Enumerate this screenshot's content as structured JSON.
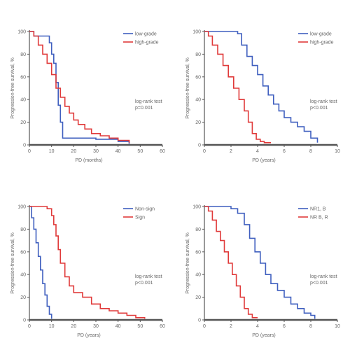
{
  "colors": {
    "series_a": "#3f5fbf",
    "series_b": "#e03a3a",
    "axis": "#555555",
    "text": "#666666"
  },
  "chart_data": [
    {
      "type": "line",
      "xlabel": "PD (months)",
      "ylabel": "Progression-free survival, %",
      "xlim": [
        0,
        60
      ],
      "ylim": [
        0,
        100
      ],
      "xticks": [
        0,
        10,
        20,
        30,
        40,
        50,
        60
      ],
      "yticks": [
        0,
        20,
        40,
        60,
        80,
        100
      ],
      "annotation": [
        "log-rank test",
        "p=0.001"
      ],
      "legend": "top-right",
      "series": [
        {
          "name": "low-grade",
          "x": [
            0,
            2,
            4,
            8,
            9,
            10,
            11,
            12,
            13,
            14,
            15,
            30,
            40,
            45
          ],
          "y": [
            100,
            96,
            96,
            96,
            90,
            80,
            72,
            55,
            35,
            20,
            6,
            5,
            3,
            1
          ]
        },
        {
          "name": "high-grade",
          "x": [
            0,
            2,
            4,
            6,
            8,
            10,
            12,
            14,
            16,
            18,
            20,
            22,
            25,
            28,
            32,
            36,
            40,
            45
          ],
          "y": [
            100,
            96,
            88,
            80,
            72,
            62,
            50,
            42,
            34,
            28,
            22,
            18,
            14,
            10,
            8,
            6,
            4,
            2
          ]
        }
      ]
    },
    {
      "type": "line",
      "xlabel": "PD (years)",
      "ylabel": "Progression-free survival, %",
      "xlim": [
        0,
        10
      ],
      "ylim": [
        0,
        100
      ],
      "xticks": [
        0,
        2,
        4,
        6,
        8,
        10
      ],
      "yticks": [
        0,
        20,
        40,
        60,
        80,
        100
      ],
      "annotation": [
        "log-rank test",
        "p<0.001"
      ],
      "legend": "top-right",
      "series": [
        {
          "name": "low-grade",
          "x": [
            0,
            1,
            2,
            2.5,
            2.8,
            3.2,
            3.6,
            4,
            4.4,
            4.8,
            5.2,
            5.6,
            6,
            6.5,
            7,
            7.5,
            8,
            8.5
          ],
          "y": [
            100,
            100,
            100,
            98,
            88,
            78,
            70,
            62,
            52,
            44,
            36,
            30,
            24,
            20,
            16,
            12,
            6,
            2
          ]
        },
        {
          "name": "high-grade",
          "x": [
            0,
            0.3,
            0.6,
            1,
            1.4,
            1.8,
            2.2,
            2.6,
            3,
            3.3,
            3.6,
            3.9,
            4.2,
            4.5,
            5
          ],
          "y": [
            100,
            96,
            88,
            80,
            70,
            60,
            50,
            40,
            30,
            20,
            10,
            5,
            3,
            2,
            2
          ]
        }
      ]
    },
    {
      "type": "line",
      "xlabel": "PD (years)",
      "ylabel": "Progression-free survival, %",
      "xlim": [
        0,
        60
      ],
      "ylim": [
        0,
        100
      ],
      "xticks": [
        0,
        10,
        20,
        30,
        40,
        50,
        60
      ],
      "yticks": [
        0,
        20,
        40,
        60,
        80,
        100
      ],
      "annotation": [
        "log-rank test",
        "p<0.001"
      ],
      "legend": "top-right",
      "series": [
        {
          "name": "Non-sign",
          "x": [
            0,
            1,
            2,
            3,
            4,
            5,
            6,
            7,
            8,
            9,
            10
          ],
          "y": [
            100,
            90,
            80,
            68,
            56,
            44,
            32,
            22,
            12,
            5,
            1
          ]
        },
        {
          "name": "Sign",
          "x": [
            0,
            4,
            6,
            8,
            10,
            11,
            12,
            13,
            14,
            16,
            18,
            20,
            24,
            28,
            32,
            36,
            40,
            44,
            48,
            52
          ],
          "y": [
            100,
            100,
            100,
            98,
            92,
            84,
            74,
            62,
            50,
            38,
            30,
            24,
            20,
            14,
            10,
            8,
            6,
            4,
            2,
            1
          ]
        }
      ]
    },
    {
      "type": "line",
      "xlabel": "PD (years)",
      "ylabel": "Progression-free survival, %",
      "xlim": [
        0,
        10
      ],
      "ylim": [
        0,
        100
      ],
      "xticks": [
        0,
        2,
        4,
        6,
        8,
        10
      ],
      "yticks": [
        0,
        20,
        40,
        60,
        80,
        100
      ],
      "annotation": [
        "log-rank test",
        "p<0.001"
      ],
      "legend": "top-right",
      "series": [
        {
          "name": "NR1, B",
          "x": [
            0,
            1,
            2,
            2.5,
            3,
            3.4,
            3.8,
            4.2,
            4.6,
            5,
            5.5,
            6,
            6.5,
            7,
            7.5,
            8,
            8.3
          ],
          "y": [
            100,
            100,
            98,
            94,
            84,
            72,
            60,
            50,
            40,
            32,
            26,
            20,
            14,
            10,
            6,
            4,
            1
          ]
        },
        {
          "name": "NR B, R",
          "x": [
            0,
            0.3,
            0.6,
            0.9,
            1.2,
            1.5,
            1.8,
            2.1,
            2.4,
            2.7,
            3,
            3.3,
            3.6,
            4
          ],
          "y": [
            100,
            96,
            88,
            78,
            70,
            60,
            50,
            40,
            30,
            20,
            10,
            5,
            2,
            2
          ]
        }
      ]
    }
  ]
}
